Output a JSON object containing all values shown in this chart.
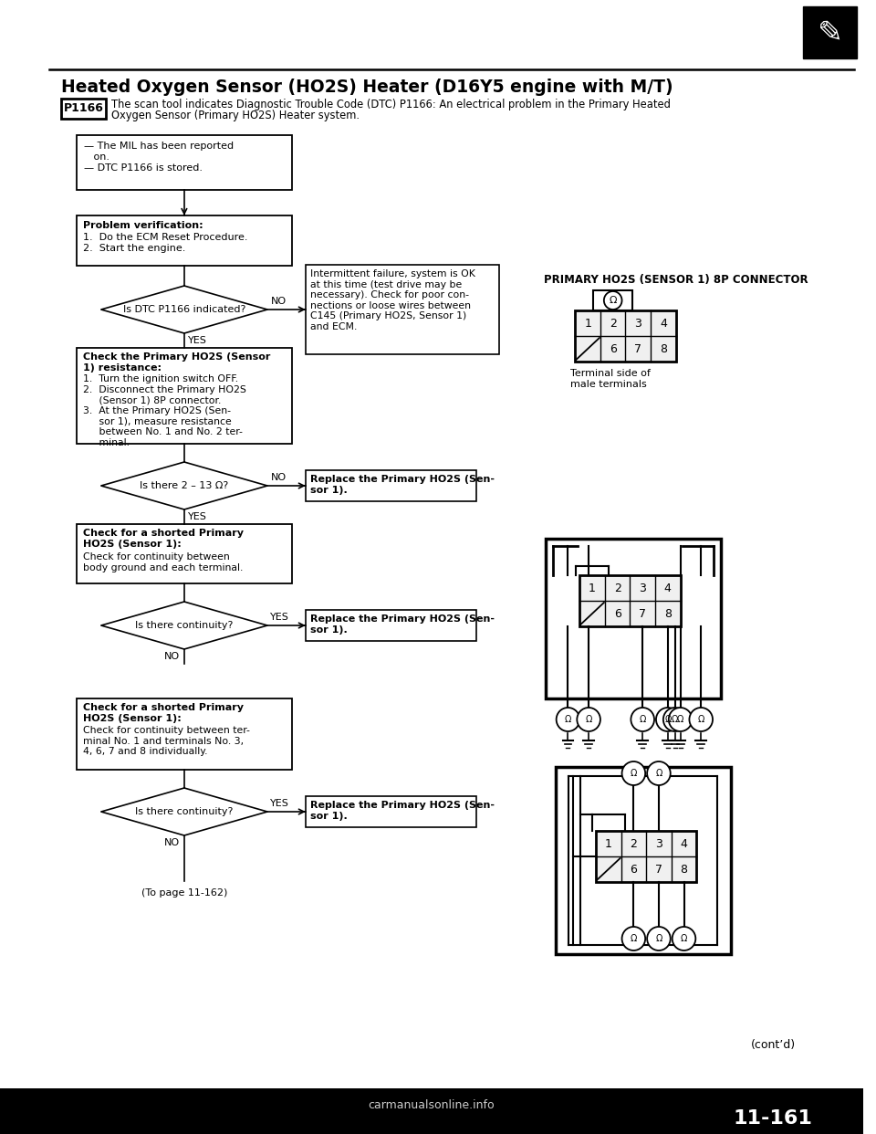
{
  "title": "Heated Oxygen Sensor (HO2S) Heater (D16Y5 engine with M/T)",
  "bg_color": "#ffffff",
  "text_color": "#000000",
  "page_number": "11-161",
  "dtc_code": "P1166",
  "dtc_desc_line1": "The scan tool indicates Diagnostic Trouble Code (DTC) P1166: An electrical problem in the Primary Heated",
  "dtc_desc_line2": "Oxygen Sensor (Primary HO2S) Heater system.",
  "box1_line1": "— The MIL has been reported",
  "box1_line2": "   on.",
  "box1_line3": "— DTC P1166 is stored.",
  "box2_title": "Problem verification:",
  "box2_text": "1.  Do the ECM Reset Procedure.\n2.  Start the engine.",
  "d1_text": "Is DTC P1166 indicated?",
  "d1_no": "NO",
  "d1_yes": "YES",
  "int_text": "Intermittent failure, system is OK\nat this time (test drive may be\nnecessary). Check for poor con-\nnections or loose wires between\nC145 (Primary HO2S, Sensor 1)\nand ECM.",
  "box3_bold": "Check the Primary HO2S (Sensor\n1) resistance:",
  "box3_text": "1.  Turn the ignition switch OFF.\n2.  Disconnect the Primary HO2S\n     (Sensor 1) 8P connector.\n3.  At the Primary HO2S (Sen-\n     sor 1), measure resistance\n     between No. 1 and No. 2 ter-\n     minal.",
  "d2_text": "Is there 2 – 13 Ω?",
  "d2_no": "NO",
  "d2_yes": "YES",
  "rep1": "Replace the Primary HO2S (Sen-\nsor 1).",
  "box4_bold": "Check for a shorted Primary\nHO2S (Sensor 1):",
  "box4_text": "Check for continuity between\nbody ground and each terminal.",
  "d3_text": "Is there continuity?",
  "d3_no": "NO",
  "d3_yes": "YES",
  "rep2": "Replace the Primary HO2S (Sen-\nsor 1).",
  "box5_bold": "Check for a shorted Primary\nHO2S (Sensor 1):",
  "box5_text": "Check for continuity between ter-\nminal No. 1 and terminals No. 3,\n4, 6, 7 and 8 individually.",
  "d4_text": "Is there continuity?",
  "d4_no": "NO",
  "d4_yes": "YES",
  "rep3": "Replace the Primary HO2S (Sen-\nsor 1).",
  "conn_title": "PRIMARY HO2S (SENSOR 1) 8P CONNECTOR",
  "conn_caption": "Terminal side of\nmale terminals",
  "to_page": "(To page 11-162)",
  "contd": "(cont’d)",
  "watermark": "carmanualsonline.info"
}
